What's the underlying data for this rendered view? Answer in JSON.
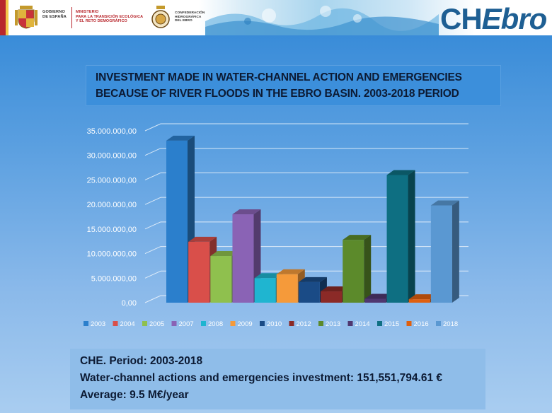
{
  "header": {
    "gov_label": [
      "GOBIERNO",
      "DE ESPAÑA"
    ],
    "ministry_label": [
      "MINISTERIO",
      "PARA LA TRANSICIÓN ECOLÓGICA",
      "Y EL RETO DEMOGRÁFICO"
    ],
    "confederation_label": [
      "CONFEDERACIÓN",
      "HIDROGRÁFICA",
      "DEL EBRO"
    ],
    "logo_ch": "CH",
    "logo_ebro": "Ebro"
  },
  "title": {
    "line1": "INVESTMENT MADE IN WATER-CHANNEL ACTION AND EMERGENCIES",
    "line2": "BECAUSE OF RIVER FLOODS IN THE EBRO BASIN. 2003-2018 PERIOD"
  },
  "chart_data": {
    "type": "bar",
    "ylim": [
      0,
      35000000
    ],
    "yticks": [
      "0,00",
      "5.000.000,00",
      "10.000.000,00",
      "15.000.000,00",
      "20.000.000,00",
      "25.000.000,00",
      "30.000.000,00",
      "35.000.000,00"
    ],
    "legend_position": "bottom",
    "grid": true,
    "series": [
      {
        "name": "2003",
        "value": 33000000,
        "color": "#2b7fcc"
      },
      {
        "name": "2004",
        "value": 12400000,
        "color": "#d94f4a"
      },
      {
        "name": "2005",
        "value": 9500000,
        "color": "#8fc04e"
      },
      {
        "name": "2007",
        "value": 18000000,
        "color": "#8a63b5"
      },
      {
        "name": "2008",
        "value": 5000000,
        "color": "#1fb5d0"
      },
      {
        "name": "2009",
        "value": 5800000,
        "color": "#f59a3a"
      },
      {
        "name": "2010",
        "value": 4200000,
        "color": "#1a4b86"
      },
      {
        "name": "2012",
        "value": 2300000,
        "color": "#8b2a27"
      },
      {
        "name": "2013",
        "value": 12800000,
        "color": "#5c8a2b"
      },
      {
        "name": "2014",
        "value": 800000,
        "color": "#4f3770"
      },
      {
        "name": "2015",
        "value": 26000000,
        "color": "#0e6f82"
      },
      {
        "name": "2016",
        "value": 700000,
        "color": "#e0600f"
      },
      {
        "name": "2018",
        "value": 19800000,
        "color": "#5a98d2"
      }
    ]
  },
  "summary": {
    "line1": "CHE. Period: 2003-2018",
    "line2": "Water-channel actions and emergencies investment: 151,551,794.61 €",
    "line3": "Average: 9.5 M€/year"
  }
}
